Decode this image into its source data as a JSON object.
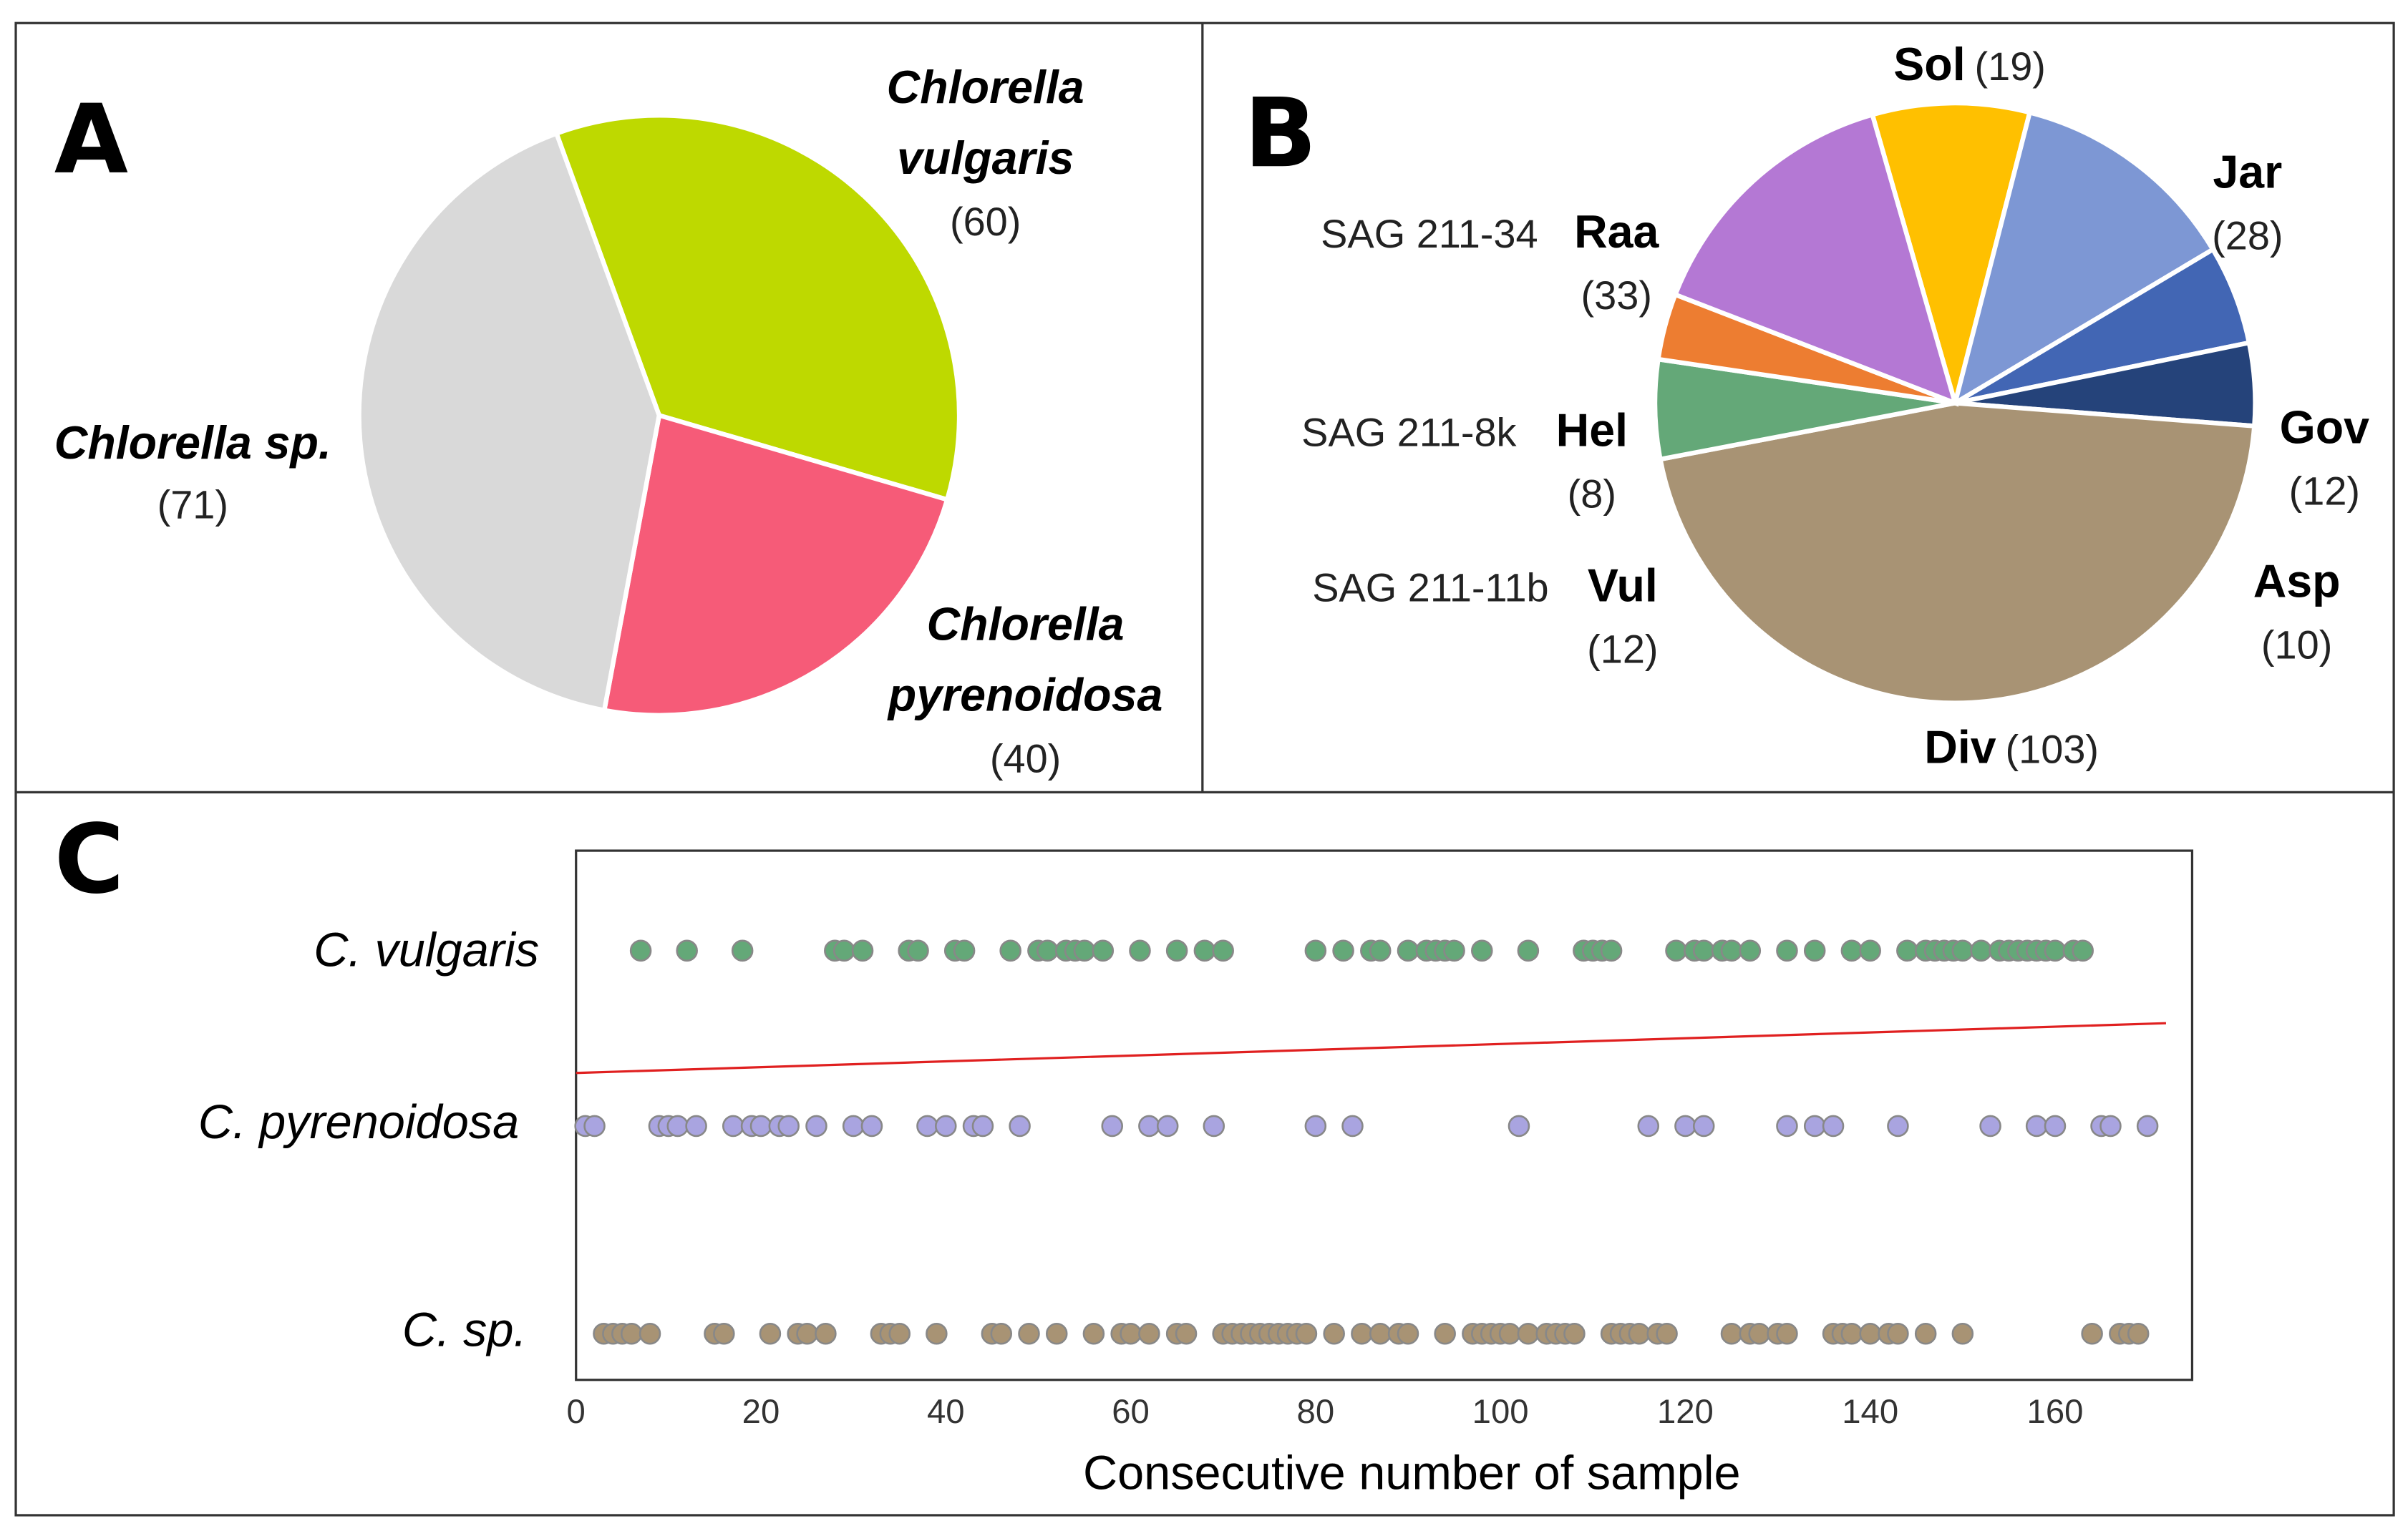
{
  "panels": {
    "a": "A",
    "b": "B",
    "c": "C"
  },
  "chart_data": [
    {
      "type": "pie",
      "panel": "A",
      "slices": [
        {
          "name1": "Chlorella",
          "name2": "vulgaris",
          "count_label": "(60)",
          "value": 60,
          "color": "#BED900"
        },
        {
          "name1": "Chlorella",
          "name2": "pyrenoidosa",
          "count_label": "(40)",
          "value": 40,
          "color": "#F65B78"
        },
        {
          "name1": "Chlorella sp.",
          "name2": "",
          "count_label": "(71)",
          "value": 71,
          "color": "#D9D9D9"
        }
      ]
    },
    {
      "type": "pie",
      "panel": "B",
      "slices": [
        {
          "name": "Sol",
          "strain": "",
          "count_label": "(19)",
          "value": 19,
          "color": "#FFC000"
        },
        {
          "name": "Jar",
          "strain": "",
          "count_label": "(28)",
          "value": 28,
          "color": "#7D97D4"
        },
        {
          "name": "Gov",
          "strain": "",
          "count_label": "(12)",
          "value": 12,
          "color": "#4266B4"
        },
        {
          "name": "Asp",
          "strain": "",
          "count_label": "(10)",
          "value": 10,
          "color": "#25437A"
        },
        {
          "name": "Div",
          "strain": "",
          "count_label": "(103)",
          "value": 103,
          "color": "#A89374"
        },
        {
          "name": "Vul",
          "strain": "SAG 211-11b",
          "count_label": "(12)",
          "value": 12,
          "color": "#64A878"
        },
        {
          "name": "Hel",
          "strain": "SAG 211-8k",
          "count_label": "(8)",
          "value": 8,
          "color": "#ED7D31"
        },
        {
          "name": "Raa",
          "strain": "SAG 211-34",
          "count_label": "(33)",
          "value": 33,
          "color": "#B478D4"
        }
      ]
    },
    {
      "type": "scatter",
      "panel": "C",
      "xlabel": "Consecutive number of sample",
      "xlim": [
        0,
        175
      ],
      "xticks": [
        "0",
        "20",
        "40",
        "60",
        "80",
        "100",
        "120",
        "140",
        "160"
      ],
      "series": [
        {
          "name": "C. vulgaris",
          "color": "#64A878",
          "x": [
            7,
            12,
            18,
            28,
            29,
            31,
            36,
            37,
            41,
            42,
            47,
            50,
            51,
            53,
            54,
            55,
            57,
            61,
            65,
            68,
            70,
            80,
            83,
            86,
            87,
            90,
            92,
            93,
            94,
            95,
            98,
            103,
            109,
            110,
            111,
            112,
            119,
            121,
            122,
            124,
            125,
            127,
            131,
            134,
            138,
            140,
            144,
            146,
            147,
            148,
            149,
            150,
            152,
            154,
            155,
            156,
            157,
            158,
            159,
            160,
            162,
            163
          ]
        },
        {
          "name": "C. pyrenoidosa",
          "color": "#A9A4E0",
          "x": [
            1,
            2,
            9,
            10,
            11,
            13,
            17,
            19,
            20,
            22,
            23,
            26,
            30,
            32,
            38,
            40,
            43,
            44,
            48,
            58,
            62,
            64,
            69,
            80,
            84,
            102,
            116,
            120,
            122,
            131,
            134,
            136,
            143,
            153,
            158,
            160,
            165,
            166,
            170
          ]
        },
        {
          "name": "C. sp.",
          "color": "#A89374",
          "x": [
            3,
            4,
            5,
            6,
            8,
            15,
            16,
            21,
            24,
            25,
            27,
            33,
            34,
            35,
            39,
            45,
            46,
            49,
            52,
            56,
            59,
            60,
            62,
            65,
            66,
            70,
            71,
            72,
            73,
            74,
            75,
            76,
            77,
            78,
            79,
            82,
            85,
            87,
            89,
            90,
            94,
            97,
            98,
            99,
            100,
            101,
            103,
            105,
            106,
            107,
            108,
            112,
            113,
            114,
            115,
            117,
            118,
            125,
            127,
            128,
            130,
            131,
            136,
            137,
            138,
            140,
            142,
            143,
            146,
            150,
            164,
            167,
            168,
            169
          ]
        }
      ],
      "trendline": {
        "x": [
          0,
          172
        ],
        "y_fraction_from_top": [
          0.42,
          0.326
        ],
        "color": "#E02020"
      }
    }
  ]
}
